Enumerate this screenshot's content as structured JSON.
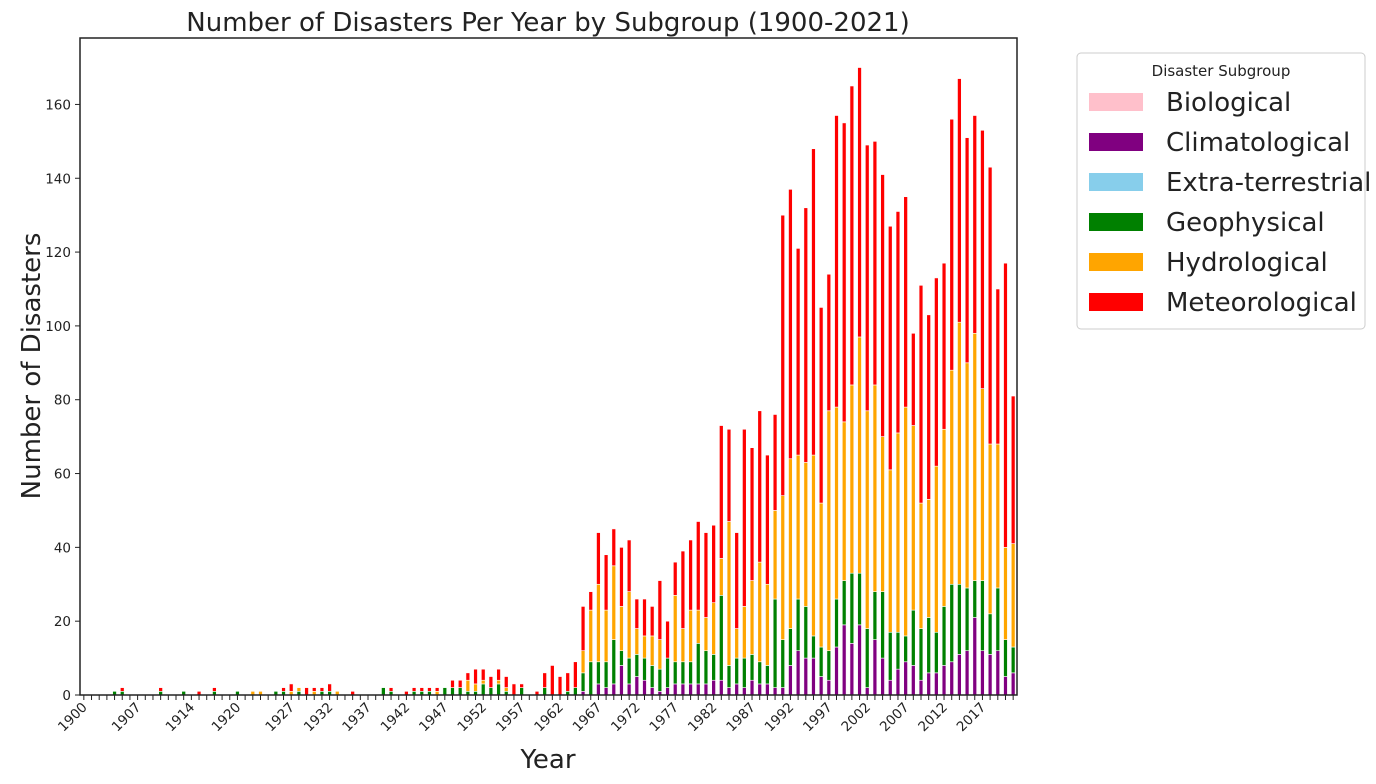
{
  "chart_data": {
    "type": "bar",
    "stacked": true,
    "title": "Number of Disasters Per Year by Subgroup (1900-2021)",
    "xlabel": "Year",
    "ylabel": "Number of Disasters",
    "ylim": [
      0,
      178
    ],
    "yticks": [
      0,
      20,
      40,
      60,
      80,
      100,
      120,
      140,
      160
    ],
    "xtick_labels": [
      "1900",
      "1907",
      "1914",
      "1920",
      "1927",
      "1932",
      "1937",
      "1942",
      "1947",
      "1952",
      "1957",
      "1962",
      "1967",
      "1972",
      "1977",
      "1982",
      "1987",
      "1992",
      "1997",
      "2002",
      "2007",
      "2012",
      "2017"
    ],
    "grid": false,
    "legend": {
      "title": "Disaster Subgroup",
      "placement": "outside-upper-right"
    },
    "categories": [
      "1900",
      "1901",
      "1902",
      "1903",
      "1904",
      "1905",
      "1906",
      "1907",
      "1908",
      "1909",
      "1910",
      "1911",
      "1912",
      "1913",
      "1914",
      "1915",
      "1916",
      "1917",
      "1918",
      "1919",
      "1920",
      "1921",
      "1922",
      "1923",
      "1924",
      "1925",
      "1926",
      "1927",
      "1928",
      "1929",
      "1930",
      "1931",
      "1932",
      "1933",
      "1934",
      "1935",
      "1936",
      "1937",
      "1938",
      "1939",
      "1940",
      "1941",
      "1942",
      "1943",
      "1944",
      "1945",
      "1946",
      "1947",
      "1948",
      "1949",
      "1950",
      "1951",
      "1952",
      "1953",
      "1954",
      "1955",
      "1956",
      "1957",
      "1958",
      "1959",
      "1960",
      "1961",
      "1962",
      "1963",
      "1964",
      "1965",
      "1966",
      "1967",
      "1968",
      "1969",
      "1970",
      "1971",
      "1972",
      "1973",
      "1974",
      "1975",
      "1976",
      "1977",
      "1978",
      "1979",
      "1980",
      "1981",
      "1982",
      "1983",
      "1984",
      "1985",
      "1986",
      "1987",
      "1988",
      "1989",
      "1990",
      "1991",
      "1992",
      "1993",
      "1994",
      "1995",
      "1996",
      "1997",
      "1998",
      "1999",
      "2000",
      "2001",
      "2002",
      "2003",
      "2004",
      "2005",
      "2006",
      "2007",
      "2008",
      "2009",
      "2010",
      "2011",
      "2012",
      "2013",
      "2014",
      "2015",
      "2016",
      "2017",
      "2018",
      "2019",
      "2020",
      "2021"
    ],
    "series": [
      {
        "name": "Biological",
        "color": "#ffc0cb",
        "values": [
          0,
          0,
          0,
          0,
          0,
          0,
          0,
          0,
          0,
          0,
          0,
          0,
          0,
          0,
          0,
          0,
          0,
          0,
          0,
          0,
          0,
          0,
          0,
          0,
          0,
          0,
          0,
          0,
          0,
          0,
          0,
          0,
          0,
          0,
          0,
          0,
          0,
          0,
          0,
          0,
          0,
          0,
          0,
          0,
          0,
          0,
          0,
          0,
          0,
          0,
          0,
          0,
          0,
          0,
          0,
          0,
          0,
          0,
          0,
          0,
          0,
          0,
          0,
          0,
          0,
          0,
          0,
          0,
          0,
          0,
          0,
          0,
          0,
          0,
          0,
          0,
          0,
          0,
          0,
          0,
          0,
          0,
          0,
          0,
          0,
          0,
          0,
          0,
          0,
          0,
          0,
          0,
          0,
          0,
          0,
          0,
          0,
          0,
          0,
          0,
          0,
          0,
          0,
          0,
          0,
          0,
          0,
          0,
          0,
          0,
          0,
          0,
          0,
          0,
          0,
          0,
          0,
          0,
          0,
          0,
          0,
          0
        ]
      },
      {
        "name": "Climatological",
        "color": "#800080",
        "values": [
          0,
          0,
          0,
          0,
          0,
          0,
          0,
          0,
          0,
          0,
          0,
          0,
          0,
          0,
          0,
          0,
          0,
          0,
          0,
          0,
          0,
          0,
          0,
          0,
          0,
          0,
          0,
          0,
          0,
          0,
          0,
          0,
          0,
          0,
          0,
          0,
          0,
          0,
          0,
          0,
          0,
          0,
          0,
          0,
          0,
          0,
          0,
          0,
          0,
          0,
          0,
          0,
          0,
          0,
          0,
          0,
          0,
          0,
          0,
          0,
          0,
          0,
          0,
          0,
          0,
          1,
          0,
          3,
          2,
          3,
          8,
          3,
          5,
          4,
          2,
          1,
          2,
          3,
          3,
          3,
          3,
          3,
          4,
          4,
          2,
          3,
          2,
          4,
          3,
          3,
          2,
          2,
          8,
          12,
          10,
          10,
          5,
          4,
          13,
          19,
          14,
          19,
          2,
          15,
          10,
          4,
          7,
          9,
          8,
          4,
          6,
          6,
          8,
          9,
          11,
          12,
          21,
          12,
          11,
          12,
          5,
          6
        ]
      },
      {
        "name": "Extra-terrestrial",
        "color": "#87ceeb",
        "values": [
          0,
          0,
          0,
          0,
          0,
          0,
          0,
          0,
          0,
          0,
          0,
          0,
          0,
          0,
          0,
          0,
          0,
          0,
          0,
          0,
          0,
          0,
          0,
          0,
          0,
          0,
          0,
          0,
          0,
          0,
          0,
          0,
          0,
          0,
          0,
          0,
          0,
          0,
          0,
          0,
          0,
          0,
          0,
          0,
          0,
          0,
          0,
          0,
          0,
          0,
          0,
          0,
          0,
          0,
          0,
          0,
          0,
          0,
          0,
          0,
          0,
          0,
          0,
          0,
          0,
          0,
          0,
          0,
          0,
          0,
          0,
          0,
          0,
          0,
          0,
          0,
          0,
          0,
          0,
          0,
          0,
          0,
          0,
          0,
          0,
          0,
          0,
          0,
          0,
          0,
          0,
          0,
          0,
          0,
          0,
          0,
          0,
          0,
          0,
          0,
          0,
          0,
          0,
          0,
          0,
          0,
          0,
          0,
          0,
          0,
          0,
          0,
          0,
          0,
          0,
          0,
          0,
          0,
          0,
          0,
          0,
          0
        ]
      },
      {
        "name": "Geophysical",
        "color": "#008000",
        "values": [
          0,
          0,
          0,
          0,
          1,
          1,
          0,
          0,
          0,
          0,
          1,
          0,
          0,
          1,
          0,
          0,
          0,
          1,
          0,
          0,
          1,
          0,
          0,
          0,
          0,
          1,
          1,
          0,
          1,
          0,
          0,
          1,
          1,
          0,
          0,
          0,
          0,
          0,
          0,
          2,
          1,
          0,
          0,
          1,
          1,
          1,
          0,
          2,
          2,
          2,
          1,
          1,
          3,
          2,
          3,
          1,
          0,
          2,
          0,
          0,
          2,
          0,
          0,
          1,
          2,
          5,
          9,
          6,
          7,
          12,
          4,
          7,
          6,
          6,
          6,
          6,
          8,
          6,
          6,
          6,
          11,
          9,
          7,
          23,
          6,
          7,
          8,
          7,
          6,
          5,
          24,
          13,
          10,
          14,
          14,
          6,
          8,
          8,
          13,
          12,
          19,
          14,
          16,
          13,
          18,
          13,
          10,
          7,
          15,
          14,
          15,
          11,
          16,
          21,
          19,
          17,
          10,
          19,
          11,
          17,
          10,
          7
        ]
      },
      {
        "name": "Hydrological",
        "color": "#ffa500",
        "values": [
          0,
          0,
          0,
          0,
          0,
          0,
          0,
          0,
          0,
          0,
          0,
          0,
          0,
          0,
          0,
          0,
          0,
          0,
          0,
          0,
          0,
          0,
          1,
          1,
          0,
          0,
          0,
          1,
          1,
          0,
          1,
          0,
          0,
          1,
          0,
          0,
          0,
          0,
          0,
          0,
          0,
          0,
          0,
          0,
          0,
          0,
          1,
          0,
          0,
          0,
          3,
          2,
          1,
          0,
          1,
          1,
          0,
          0,
          0,
          0,
          0,
          0,
          0,
          0,
          0,
          6,
          14,
          21,
          14,
          20,
          12,
          18,
          7,
          6,
          8,
          8,
          0,
          18,
          9,
          14,
          9,
          9,
          14,
          10,
          39,
          8,
          14,
          20,
          27,
          22,
          24,
          39,
          46,
          39,
          39,
          49,
          39,
          65,
          52,
          43,
          51,
          64,
          59,
          56,
          42,
          44,
          54,
          62,
          50,
          34,
          32,
          45,
          48,
          58,
          71,
          61,
          67,
          52,
          46,
          39,
          25,
          28
        ]
      },
      {
        "name": "Meteorological",
        "color": "#ff0000",
        "values": [
          0,
          0,
          0,
          0,
          0,
          1,
          0,
          0,
          0,
          0,
          1,
          0,
          0,
          0,
          0,
          1,
          0,
          1,
          0,
          0,
          0,
          0,
          0,
          0,
          0,
          0,
          1,
          2,
          0,
          2,
          1,
          1,
          2,
          0,
          0,
          1,
          0,
          0,
          0,
          0,
          1,
          0,
          1,
          1,
          1,
          1,
          1,
          0,
          2,
          2,
          2,
          4,
          3,
          3,
          3,
          3,
          3,
          1,
          0,
          1,
          4,
          8,
          5,
          5,
          7,
          12,
          5,
          14,
          15,
          10,
          16,
          14,
          8,
          10,
          8,
          16,
          10,
          9,
          21,
          19,
          24,
          23,
          21,
          36,
          25,
          26,
          48,
          36,
          41,
          35,
          26,
          76,
          73,
          56,
          69,
          83,
          53,
          37,
          79,
          81,
          81,
          73,
          72,
          66,
          71,
          66,
          60,
          57,
          25,
          59,
          50,
          51,
          45,
          68,
          66,
          61,
          59,
          70,
          75,
          42,
          77,
          40
        ]
      }
    ]
  }
}
